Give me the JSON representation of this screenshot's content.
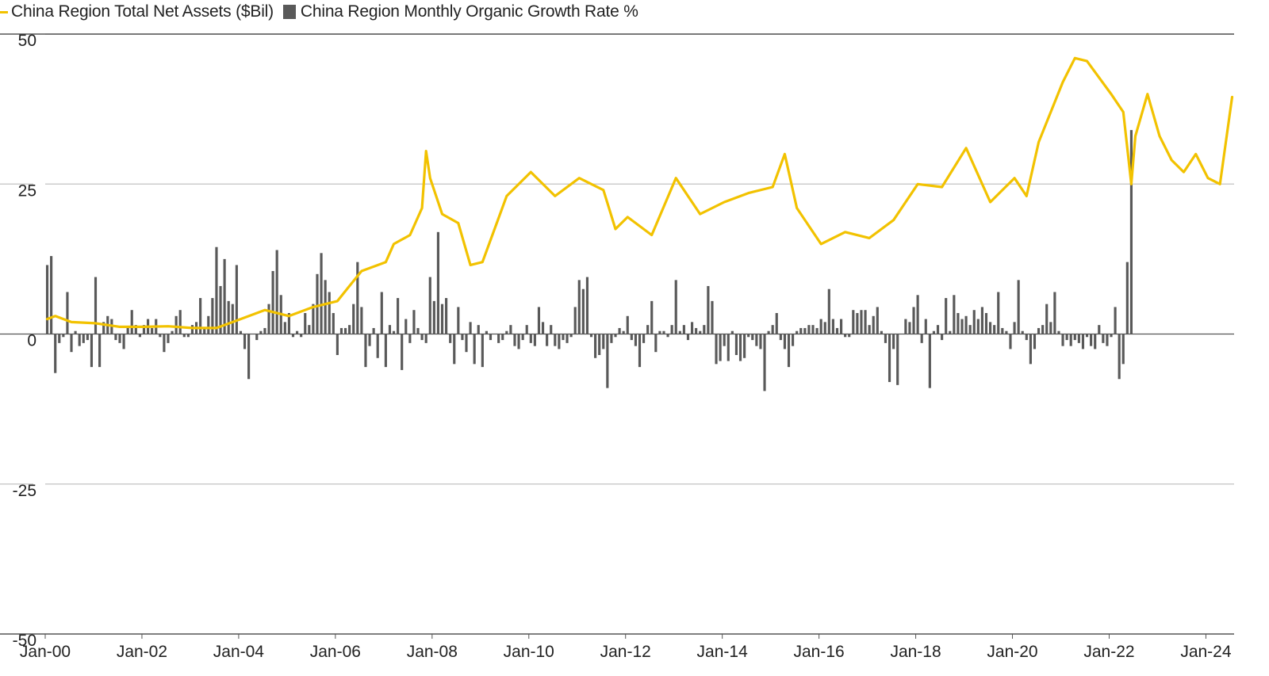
{
  "chart_data": {
    "type": "bar+line",
    "title": "",
    "colors": {
      "line": "#F2C200",
      "bar": "#595959",
      "grid": "#cccccc",
      "axis": "#555555"
    },
    "legend": [
      {
        "label": "China Region Total Net Assets ($Bil)",
        "kind": "line"
      },
      {
        "label": "China Region Monthly Organic Growth Rate %",
        "kind": "bar"
      }
    ],
    "y_ticks": [
      "50",
      "25",
      "0",
      "-25",
      "-50"
    ],
    "ylim": [
      -50,
      50
    ],
    "x_ticks": [
      "Jan-00",
      "Jan-02",
      "Jan-04",
      "Jan-06",
      "Jan-08",
      "Jan-10",
      "Jan-12",
      "Jan-14",
      "Jan-16",
      "Jan-18",
      "Jan-20",
      "Jan-22",
      "Jan-24"
    ],
    "x_start": "Jan-00",
    "x_end": "Jul-24",
    "series": [
      {
        "name": "China Region Total Net Assets ($Bil)",
        "kind": "line",
        "points": [
          [
            "Jan-00",
            2.5
          ],
          [
            "Mar-00",
            3.0
          ],
          [
            "Jul-00",
            2.0
          ],
          [
            "Jan-01",
            1.8
          ],
          [
            "Jul-01",
            1.2
          ],
          [
            "Jan-02",
            1.2
          ],
          [
            "Jul-02",
            1.3
          ],
          [
            "Jan-03",
            1.0
          ],
          [
            "Jul-03",
            1.0
          ],
          [
            "Jan-04",
            2.5
          ],
          [
            "Jul-04",
            4.0
          ],
          [
            "Jan-05",
            3.0
          ],
          [
            "Jul-05",
            4.5
          ],
          [
            "Jan-06",
            5.5
          ],
          [
            "Apr-06",
            8.0
          ],
          [
            "Jul-06",
            10.5
          ],
          [
            "Jan-07",
            12.0
          ],
          [
            "Mar-07",
            15.0
          ],
          [
            "Jul-07",
            16.5
          ],
          [
            "Oct-07",
            21.0
          ],
          [
            "Nov-07",
            30.5
          ],
          [
            "Dec-07",
            26.0
          ],
          [
            "Mar-08",
            20.0
          ],
          [
            "Jul-08",
            18.5
          ],
          [
            "Oct-08",
            11.5
          ],
          [
            "Jan-09",
            12.0
          ],
          [
            "Jul-09",
            23.0
          ],
          [
            "Jan-10",
            27.0
          ],
          [
            "Jul-10",
            23.0
          ],
          [
            "Jan-11",
            26.0
          ],
          [
            "Jul-11",
            24.0
          ],
          [
            "Oct-11",
            17.5
          ],
          [
            "Jan-12",
            19.5
          ],
          [
            "Jul-12",
            16.5
          ],
          [
            "Jan-13",
            26.0
          ],
          [
            "Jul-13",
            20.0
          ],
          [
            "Jan-14",
            22.0
          ],
          [
            "Jul-14",
            23.5
          ],
          [
            "Jan-15",
            24.5
          ],
          [
            "Apr-15",
            30.0
          ],
          [
            "Jul-15",
            21.0
          ],
          [
            "Jan-16",
            15.0
          ],
          [
            "Jul-16",
            17.0
          ],
          [
            "Jan-17",
            16.0
          ],
          [
            "Jul-17",
            19.0
          ],
          [
            "Jan-18",
            25.0
          ],
          [
            "Jul-18",
            24.5
          ],
          [
            "Jan-19",
            31.0
          ],
          [
            "Jul-19",
            22.0
          ],
          [
            "Jan-20",
            26.0
          ],
          [
            "Apr-20",
            23.0
          ],
          [
            "Jul-20",
            32.0
          ],
          [
            "Jan-21",
            42.0
          ],
          [
            "Apr-21",
            46.0
          ],
          [
            "Jul-21",
            45.5
          ],
          [
            "Jan-22",
            40.0
          ],
          [
            "Apr-22",
            37.0
          ],
          [
            "Jun-22",
            25.0
          ],
          [
            "Jul-22",
            33.0
          ],
          [
            "Oct-22",
            40.0
          ],
          [
            "Jan-23",
            33.0
          ],
          [
            "Apr-23",
            29.0
          ],
          [
            "Jul-23",
            27.0
          ],
          [
            "Oct-23",
            30.0
          ],
          [
            "Jan-24",
            26.0
          ],
          [
            "Apr-24",
            25.0
          ],
          [
            "Jul-24",
            39.5
          ]
        ]
      },
      {
        "name": "China Region Monthly Organic Growth Rate %",
        "kind": "bar",
        "values": [
          11.5,
          13.0,
          -6.5,
          -1.5,
          -0.5,
          7.0,
          -3.0,
          0.5,
          -2.0,
          -1.5,
          -1.0,
          -5.5,
          9.5,
          -5.5,
          2.0,
          3.0,
          2.5,
          -1.0,
          -1.5,
          -2.5,
          1.0,
          4.0,
          1.5,
          -0.5,
          1.5,
          2.5,
          1.0,
          2.5,
          -0.5,
          -3.0,
          -1.5,
          0.5,
          3.0,
          4.0,
          -0.5,
          -0.5,
          1.5,
          2.0,
          6.0,
          1.0,
          3.0,
          6.0,
          14.5,
          8.0,
          12.5,
          5.5,
          5.0,
          11.5,
          0.5,
          -2.5,
          -7.5,
          0.0,
          -1.0,
          0.5,
          1.0,
          5.0,
          10.5,
          14.0,
          6.5,
          2.0,
          3.5,
          -0.5,
          0.5,
          -0.5,
          3.5,
          1.5,
          5.0,
          10.0,
          13.5,
          9.0,
          7.0,
          3.5,
          -3.5,
          1.0,
          1.0,
          1.5,
          5.0,
          12.0,
          4.5,
          -5.5,
          -2.0,
          1.0,
          -4.0,
          7.0,
          -5.5,
          1.5,
          0.5,
          6.0,
          -6.0,
          2.5,
          -1.5,
          4.0,
          1.0,
          -1.0,
          -1.5,
          9.5,
          5.5,
          17.0,
          5.0,
          6.0,
          -1.5,
          -5.0,
          4.5,
          -1.0,
          -3.0,
          2.0,
          -5.0,
          1.5,
          -5.5,
          0.5,
          -1.0,
          0.0,
          -1.5,
          -1.0,
          0.5,
          1.5,
          -2.0,
          -2.5,
          -1.0,
          1.5,
          -1.5,
          -2.0,
          4.5,
          2.0,
          -2.0,
          1.5,
          -2.0,
          -2.5,
          -1.0,
          -1.5,
          -0.5,
          4.5,
          9.0,
          7.5,
          9.5,
          -0.5,
          -4.0,
          -3.5,
          -2.5,
          -9.0,
          -1.5,
          -0.5,
          1.0,
          0.5,
          3.0,
          -1.0,
          -2.0,
          -5.5,
          -1.5,
          1.5,
          5.5,
          -3.0,
          0.5,
          0.5,
          -0.5,
          1.5,
          9.0,
          0.5,
          1.5,
          -1.0,
          2.0,
          1.0,
          0.5,
          1.5,
          8.0,
          5.5,
          -5.0,
          -4.5,
          -2.0,
          -4.5,
          0.5,
          -3.5,
          -4.5,
          -4.0,
          -0.5,
          -1.0,
          -2.0,
          -2.5,
          -9.5,
          0.5,
          1.5,
          3.5,
          -1.0,
          -2.5,
          -5.5,
          -2.0,
          0.5,
          1.0,
          1.0,
          1.5,
          1.5,
          1.0,
          2.5,
          2.0,
          7.5,
          2.5,
          1.0,
          2.5,
          -0.5,
          -0.5,
          4.0,
          3.5,
          4.0,
          4.0,
          1.5,
          3.0,
          4.5,
          0.5,
          -1.5,
          -8.0,
          -2.5,
          -8.5,
          0.0,
          2.5,
          2.0,
          4.5,
          6.5,
          -1.5,
          2.5,
          -9.0,
          0.5,
          1.5,
          -1.0,
          6.0,
          0.5,
          6.5,
          3.5,
          2.5,
          3.0,
          1.5,
          4.0,
          2.5,
          4.5,
          3.5,
          2.0,
          1.5,
          7.0,
          1.0,
          0.5,
          -2.5,
          2.0,
          9.0,
          0.5,
          -1.0,
          -5.0,
          -2.5,
          1.0,
          1.5,
          5.0,
          2.0,
          7.0,
          0.5,
          -2.0,
          -1.0,
          -2.0,
          -1.0,
          -1.5,
          -2.5,
          -0.5,
          -2.0,
          -2.5,
          1.5,
          -1.5,
          -2.0,
          -0.5,
          4.5,
          -7.5,
          -5.0,
          12.0,
          34.0
        ]
      }
    ]
  }
}
